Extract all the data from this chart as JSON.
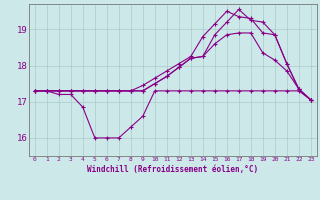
{
  "xlabel": "Windchill (Refroidissement éolien,°C)",
  "bg_color": "#cce8e8",
  "grid_color": "#aacccc",
  "line_color": "#880088",
  "xlim": [
    -0.5,
    23.5
  ],
  "ylim": [
    15.5,
    19.7
  ],
  "yticks": [
    16,
    17,
    18,
    19
  ],
  "xticks": [
    0,
    1,
    2,
    3,
    4,
    5,
    6,
    7,
    8,
    9,
    10,
    11,
    12,
    13,
    14,
    15,
    16,
    17,
    18,
    19,
    20,
    21,
    22,
    23
  ],
  "series1_x": [
    0,
    1,
    2,
    3,
    4,
    5,
    6,
    7,
    8,
    9,
    10,
    11,
    12,
    13,
    14,
    15,
    16,
    17,
    18,
    19,
    20,
    21,
    22,
    23
  ],
  "series1_y": [
    17.3,
    17.3,
    17.2,
    17.2,
    16.85,
    16.0,
    16.0,
    16.0,
    16.3,
    16.6,
    17.3,
    17.3,
    17.3,
    17.3,
    17.3,
    17.3,
    17.3,
    17.3,
    17.3,
    17.3,
    17.3,
    17.3,
    17.3,
    17.05
  ],
  "series2_x": [
    0,
    1,
    2,
    3,
    4,
    5,
    6,
    7,
    8,
    9,
    10,
    11,
    12,
    13,
    14,
    15,
    16,
    17,
    18,
    19,
    20,
    21,
    22,
    23
  ],
  "series2_y": [
    17.3,
    17.3,
    17.3,
    17.3,
    17.3,
    17.3,
    17.3,
    17.3,
    17.3,
    17.3,
    17.5,
    17.7,
    17.95,
    18.2,
    18.25,
    18.6,
    18.85,
    18.9,
    18.9,
    18.35,
    18.15,
    17.85,
    17.35,
    17.05
  ],
  "series3_x": [
    0,
    1,
    2,
    3,
    4,
    5,
    6,
    7,
    8,
    9,
    10,
    11,
    12,
    13,
    14,
    15,
    16,
    17,
    18,
    19,
    20,
    21,
    22,
    23
  ],
  "series3_y": [
    17.3,
    17.3,
    17.3,
    17.3,
    17.3,
    17.3,
    17.3,
    17.3,
    17.3,
    17.45,
    17.65,
    17.85,
    18.05,
    18.25,
    18.8,
    19.15,
    19.5,
    19.35,
    19.3,
    18.9,
    18.85,
    18.05,
    17.35,
    17.05
  ],
  "series4_x": [
    0,
    1,
    2,
    3,
    4,
    5,
    6,
    7,
    8,
    9,
    10,
    11,
    12,
    13,
    14,
    15,
    16,
    17,
    18,
    19,
    20,
    21,
    22,
    23
  ],
  "series4_y": [
    17.3,
    17.3,
    17.3,
    17.3,
    17.3,
    17.3,
    17.3,
    17.3,
    17.3,
    17.3,
    17.5,
    17.7,
    17.95,
    18.2,
    18.25,
    18.85,
    19.2,
    19.55,
    19.25,
    19.2,
    18.85,
    18.05,
    17.35,
    17.05
  ]
}
